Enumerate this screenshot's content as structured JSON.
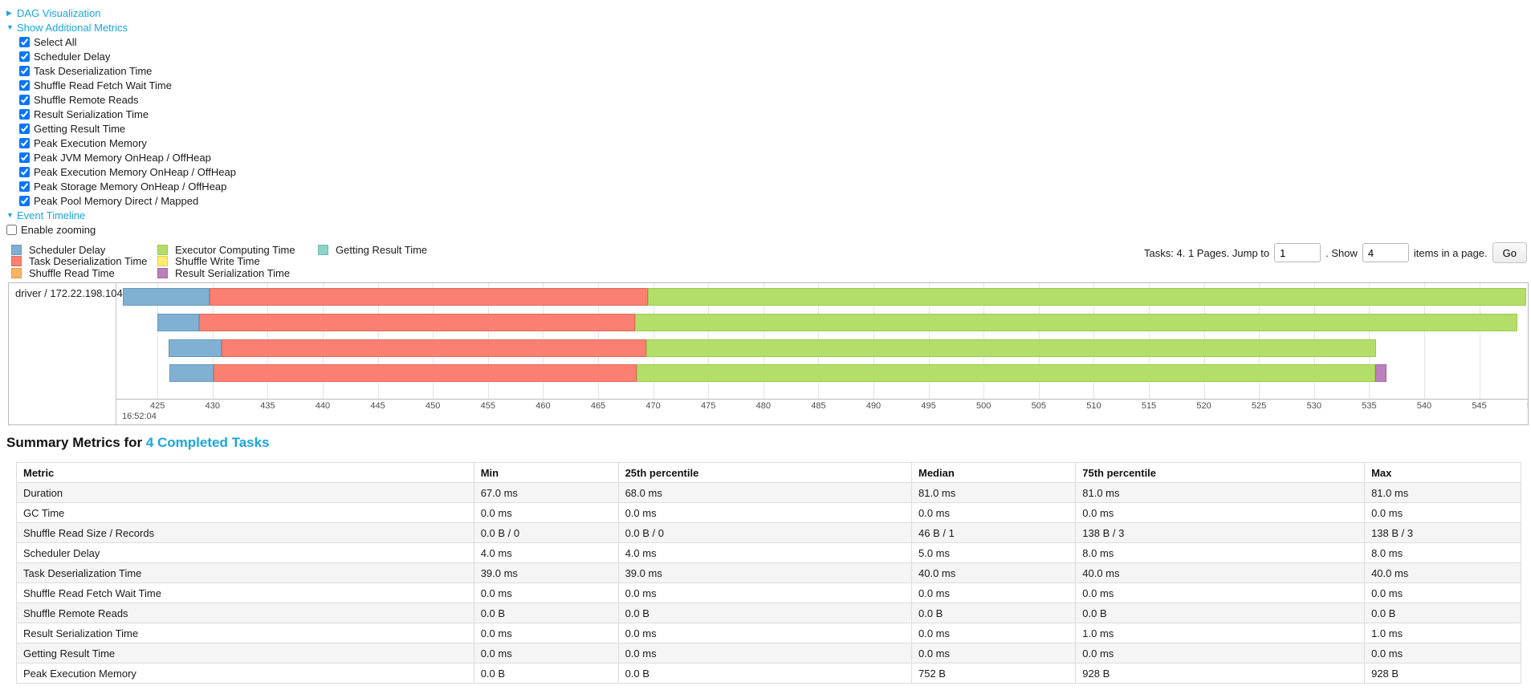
{
  "accent_color": "#1ba5dc",
  "toggles": {
    "dag_visualization": "DAG Visualization",
    "show_additional_metrics": "Show Additional Metrics",
    "event_timeline": "Event Timeline"
  },
  "metric_checkboxes": [
    {
      "label": "Select All",
      "checked": true
    },
    {
      "label": "Scheduler Delay",
      "checked": true
    },
    {
      "label": "Task Deserialization Time",
      "checked": true
    },
    {
      "label": "Shuffle Read Fetch Wait Time",
      "checked": true
    },
    {
      "label": "Shuffle Remote Reads",
      "checked": true
    },
    {
      "label": "Result Serialization Time",
      "checked": true
    },
    {
      "label": "Getting Result Time",
      "checked": true
    },
    {
      "label": "Peak Execution Memory",
      "checked": true
    },
    {
      "label": "Peak JVM Memory OnHeap / OffHeap",
      "checked": true
    },
    {
      "label": "Peak Execution Memory OnHeap / OffHeap",
      "checked": true
    },
    {
      "label": "Peak Storage Memory OnHeap / OffHeap",
      "checked": true
    },
    {
      "label": "Peak Pool Memory Direct / Mapped",
      "checked": true
    }
  ],
  "enable_zooming": {
    "label": "Enable zooming",
    "checked": false
  },
  "pagination": {
    "tasks_text": "Tasks: 4. 1 Pages. Jump to",
    "jump_value": "1",
    "show_text": ". Show",
    "show_value": "4",
    "items_text": "items in a page.",
    "go_label": "Go"
  },
  "chart_data": {
    "type": "timeline-gantt",
    "group_label": "driver / 172.22.198.104",
    "axis_time_label": "16:52:04",
    "axis": {
      "first_tick": 425,
      "step": 5,
      "last_tick": 545,
      "clipped_tick": 550,
      "unit": "ms"
    },
    "series": [
      {
        "key": "scheduler_delay",
        "label": "Scheduler Delay",
        "color": "#80B1D3",
        "border": "#6898BD"
      },
      {
        "key": "task_deserialization",
        "label": "Task Deserialization Time",
        "color": "#FB8072",
        "border": "#E06A5E"
      },
      {
        "key": "shuffle_read",
        "label": "Shuffle Read Time",
        "color": "#FDB462",
        "border": "#E09A48"
      },
      {
        "key": "executor_computing",
        "label": "Executor Computing Time",
        "color": "#B3DE69",
        "border": "#9CC94F"
      },
      {
        "key": "shuffle_write",
        "label": "Shuffle Write Time",
        "color": "#FFED6F",
        "border": "#E3CF54"
      },
      {
        "key": "result_serialization",
        "label": "Result Serialization Time",
        "color": "#BC80BD",
        "border": "#A566A6"
      },
      {
        "key": "getting_result",
        "label": "Getting Result Time",
        "color": "#8DD3C7",
        "border": "#74BAAE"
      }
    ],
    "legend_order": [
      "scheduler_delay",
      "task_deserialization",
      "shuffle_read",
      "executor_computing",
      "shuffle_write",
      "result_serialization",
      "getting_result"
    ],
    "tasks": [
      {
        "segments": [
          {
            "key": "scheduler_delay",
            "start": 421.85,
            "end": 429.72
          },
          {
            "key": "task_deserialization",
            "start": 429.72,
            "end": 469.53
          },
          {
            "key": "executor_computing",
            "start": 469.53,
            "end": 549.27
          }
        ]
      },
      {
        "segments": [
          {
            "key": "scheduler_delay",
            "start": 424.99,
            "end": 428.78
          },
          {
            "key": "task_deserialization",
            "start": 428.78,
            "end": 468.36
          },
          {
            "key": "executor_computing",
            "start": 468.36,
            "end": 548.47
          }
        ]
      },
      {
        "segments": [
          {
            "key": "scheduler_delay",
            "start": 426.01,
            "end": 430.82
          },
          {
            "key": "task_deserialization",
            "start": 430.82,
            "end": 469.38
          },
          {
            "key": "executor_computing",
            "start": 469.38,
            "end": 535.64
          }
        ]
      },
      {
        "segments": [
          {
            "key": "scheduler_delay",
            "start": 426.08,
            "end": 430.09
          },
          {
            "key": "task_deserialization",
            "start": 430.09,
            "end": 468.5
          },
          {
            "key": "executor_computing",
            "start": 468.5,
            "end": 535.57
          },
          {
            "key": "result_serialization",
            "start": 535.57,
            "end": 536.59
          }
        ]
      }
    ]
  },
  "summary": {
    "heading_prefix": "Summary Metrics for ",
    "heading_link": "4 Completed Tasks",
    "table": {
      "columns": [
        "Metric",
        "Min",
        "25th percentile",
        "Median",
        "75th percentile",
        "Max"
      ],
      "column_widths_pct": [
        30.4,
        9.6,
        19.5,
        10.9,
        19.2,
        10.4
      ],
      "rows": [
        [
          "Duration",
          "67.0 ms",
          "68.0 ms",
          "81.0 ms",
          "81.0 ms",
          "81.0 ms"
        ],
        [
          "GC Time",
          "0.0 ms",
          "0.0 ms",
          "0.0 ms",
          "0.0 ms",
          "0.0 ms"
        ],
        [
          "Shuffle Read Size / Records",
          "0.0 B / 0",
          "0.0 B / 0",
          "46 B / 1",
          "138 B / 3",
          "138 B / 3"
        ],
        [
          "Scheduler Delay",
          "4.0 ms",
          "4.0 ms",
          "5.0 ms",
          "8.0 ms",
          "8.0 ms"
        ],
        [
          "Task Deserialization Time",
          "39.0 ms",
          "39.0 ms",
          "40.0 ms",
          "40.0 ms",
          "40.0 ms"
        ],
        [
          "Shuffle Read Fetch Wait Time",
          "0.0 ms",
          "0.0 ms",
          "0.0 ms",
          "0.0 ms",
          "0.0 ms"
        ],
        [
          "Shuffle Remote Reads",
          "0.0 B",
          "0.0 B",
          "0.0 B",
          "0.0 B",
          "0.0 B"
        ],
        [
          "Result Serialization Time",
          "0.0 ms",
          "0.0 ms",
          "0.0 ms",
          "1.0 ms",
          "1.0 ms"
        ],
        [
          "Getting Result Time",
          "0.0 ms",
          "0.0 ms",
          "0.0 ms",
          "0.0 ms",
          "0.0 ms"
        ],
        [
          "Peak Execution Memory",
          "0.0 B",
          "0.0 B",
          "752 B",
          "928 B",
          "928 B"
        ]
      ]
    }
  }
}
